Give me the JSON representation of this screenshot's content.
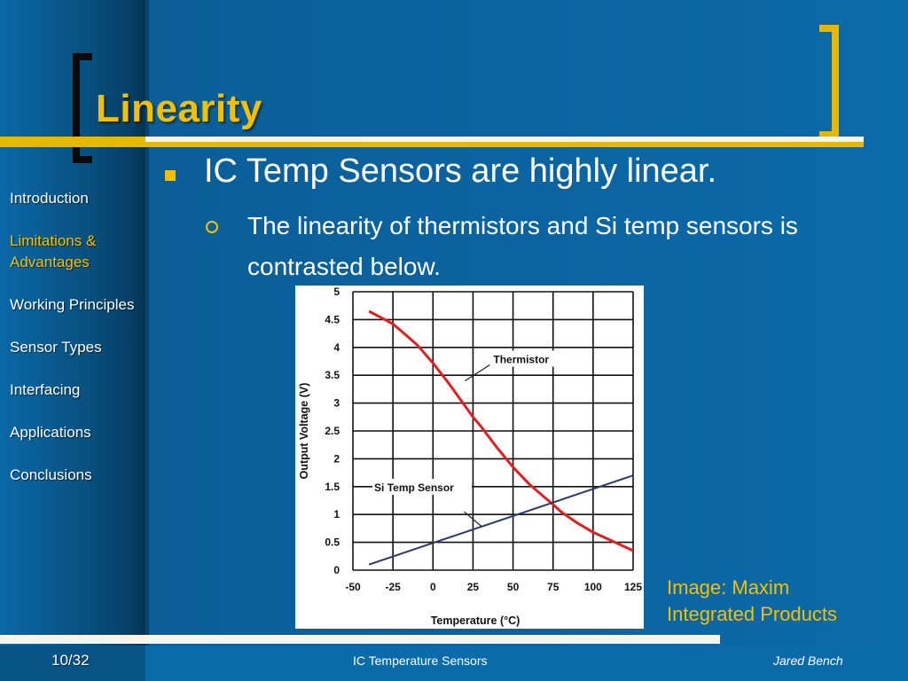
{
  "slide": {
    "title": "Linearity",
    "bullet_main": "IC Temp Sensors are highly linear.",
    "bullet_sub": "The linearity of thermistors and Si temp sensors is contrasted below.",
    "image_credit_line1": "Image: Maxim",
    "image_credit_line2": "Integrated Products"
  },
  "nav": {
    "items": [
      {
        "label": "Introduction",
        "active": false
      },
      {
        "label": "Limitations & Advantages",
        "active": true
      },
      {
        "label": "Working Principles",
        "active": false
      },
      {
        "label": "Sensor Types",
        "active": false
      },
      {
        "label": "Interfacing",
        "active": false
      },
      {
        "label": "Applications",
        "active": false
      },
      {
        "label": "Conclusions",
        "active": false
      }
    ]
  },
  "footer": {
    "page": "10/32",
    "title": "IC Temperature Sensors",
    "author": "Jared Bench"
  },
  "colors": {
    "accent": "#f2c000",
    "background": "#0b6aa8",
    "thermistor_line": "#e02020",
    "si_line": "#2a3a6a"
  },
  "chart_data": {
    "type": "line",
    "xlabel": "Temperature (°C)",
    "ylabel": "Output Voltage (V)",
    "xlim": [
      -50,
      125
    ],
    "ylim": [
      0,
      5
    ],
    "x_ticks": [
      "-50",
      "-25",
      "0",
      "25",
      "50",
      "75",
      "100",
      "125"
    ],
    "y_ticks": [
      "0",
      "0.5",
      "1",
      "1.5",
      "2",
      "2.5",
      "3",
      "3.5",
      "4",
      "4.5",
      "5"
    ],
    "grid": true,
    "series": [
      {
        "name": "Thermistor",
        "x": [
          -40,
          -30,
          -25,
          -20,
          -10,
          0,
          10,
          20,
          25,
          30,
          40,
          50,
          60,
          70,
          75,
          80,
          90,
          100,
          110,
          125
        ],
        "y": [
          4.65,
          4.5,
          4.42,
          4.3,
          4.05,
          3.72,
          3.35,
          2.95,
          2.75,
          2.58,
          2.2,
          1.85,
          1.55,
          1.3,
          1.18,
          1.05,
          0.85,
          0.68,
          0.55,
          0.35
        ]
      },
      {
        "name": "Si Temp Sensor",
        "x": [
          -40,
          125
        ],
        "y": [
          0.1,
          1.7
        ]
      }
    ],
    "annotations": [
      "Thermistor",
      "Si Temp Sensor"
    ]
  }
}
